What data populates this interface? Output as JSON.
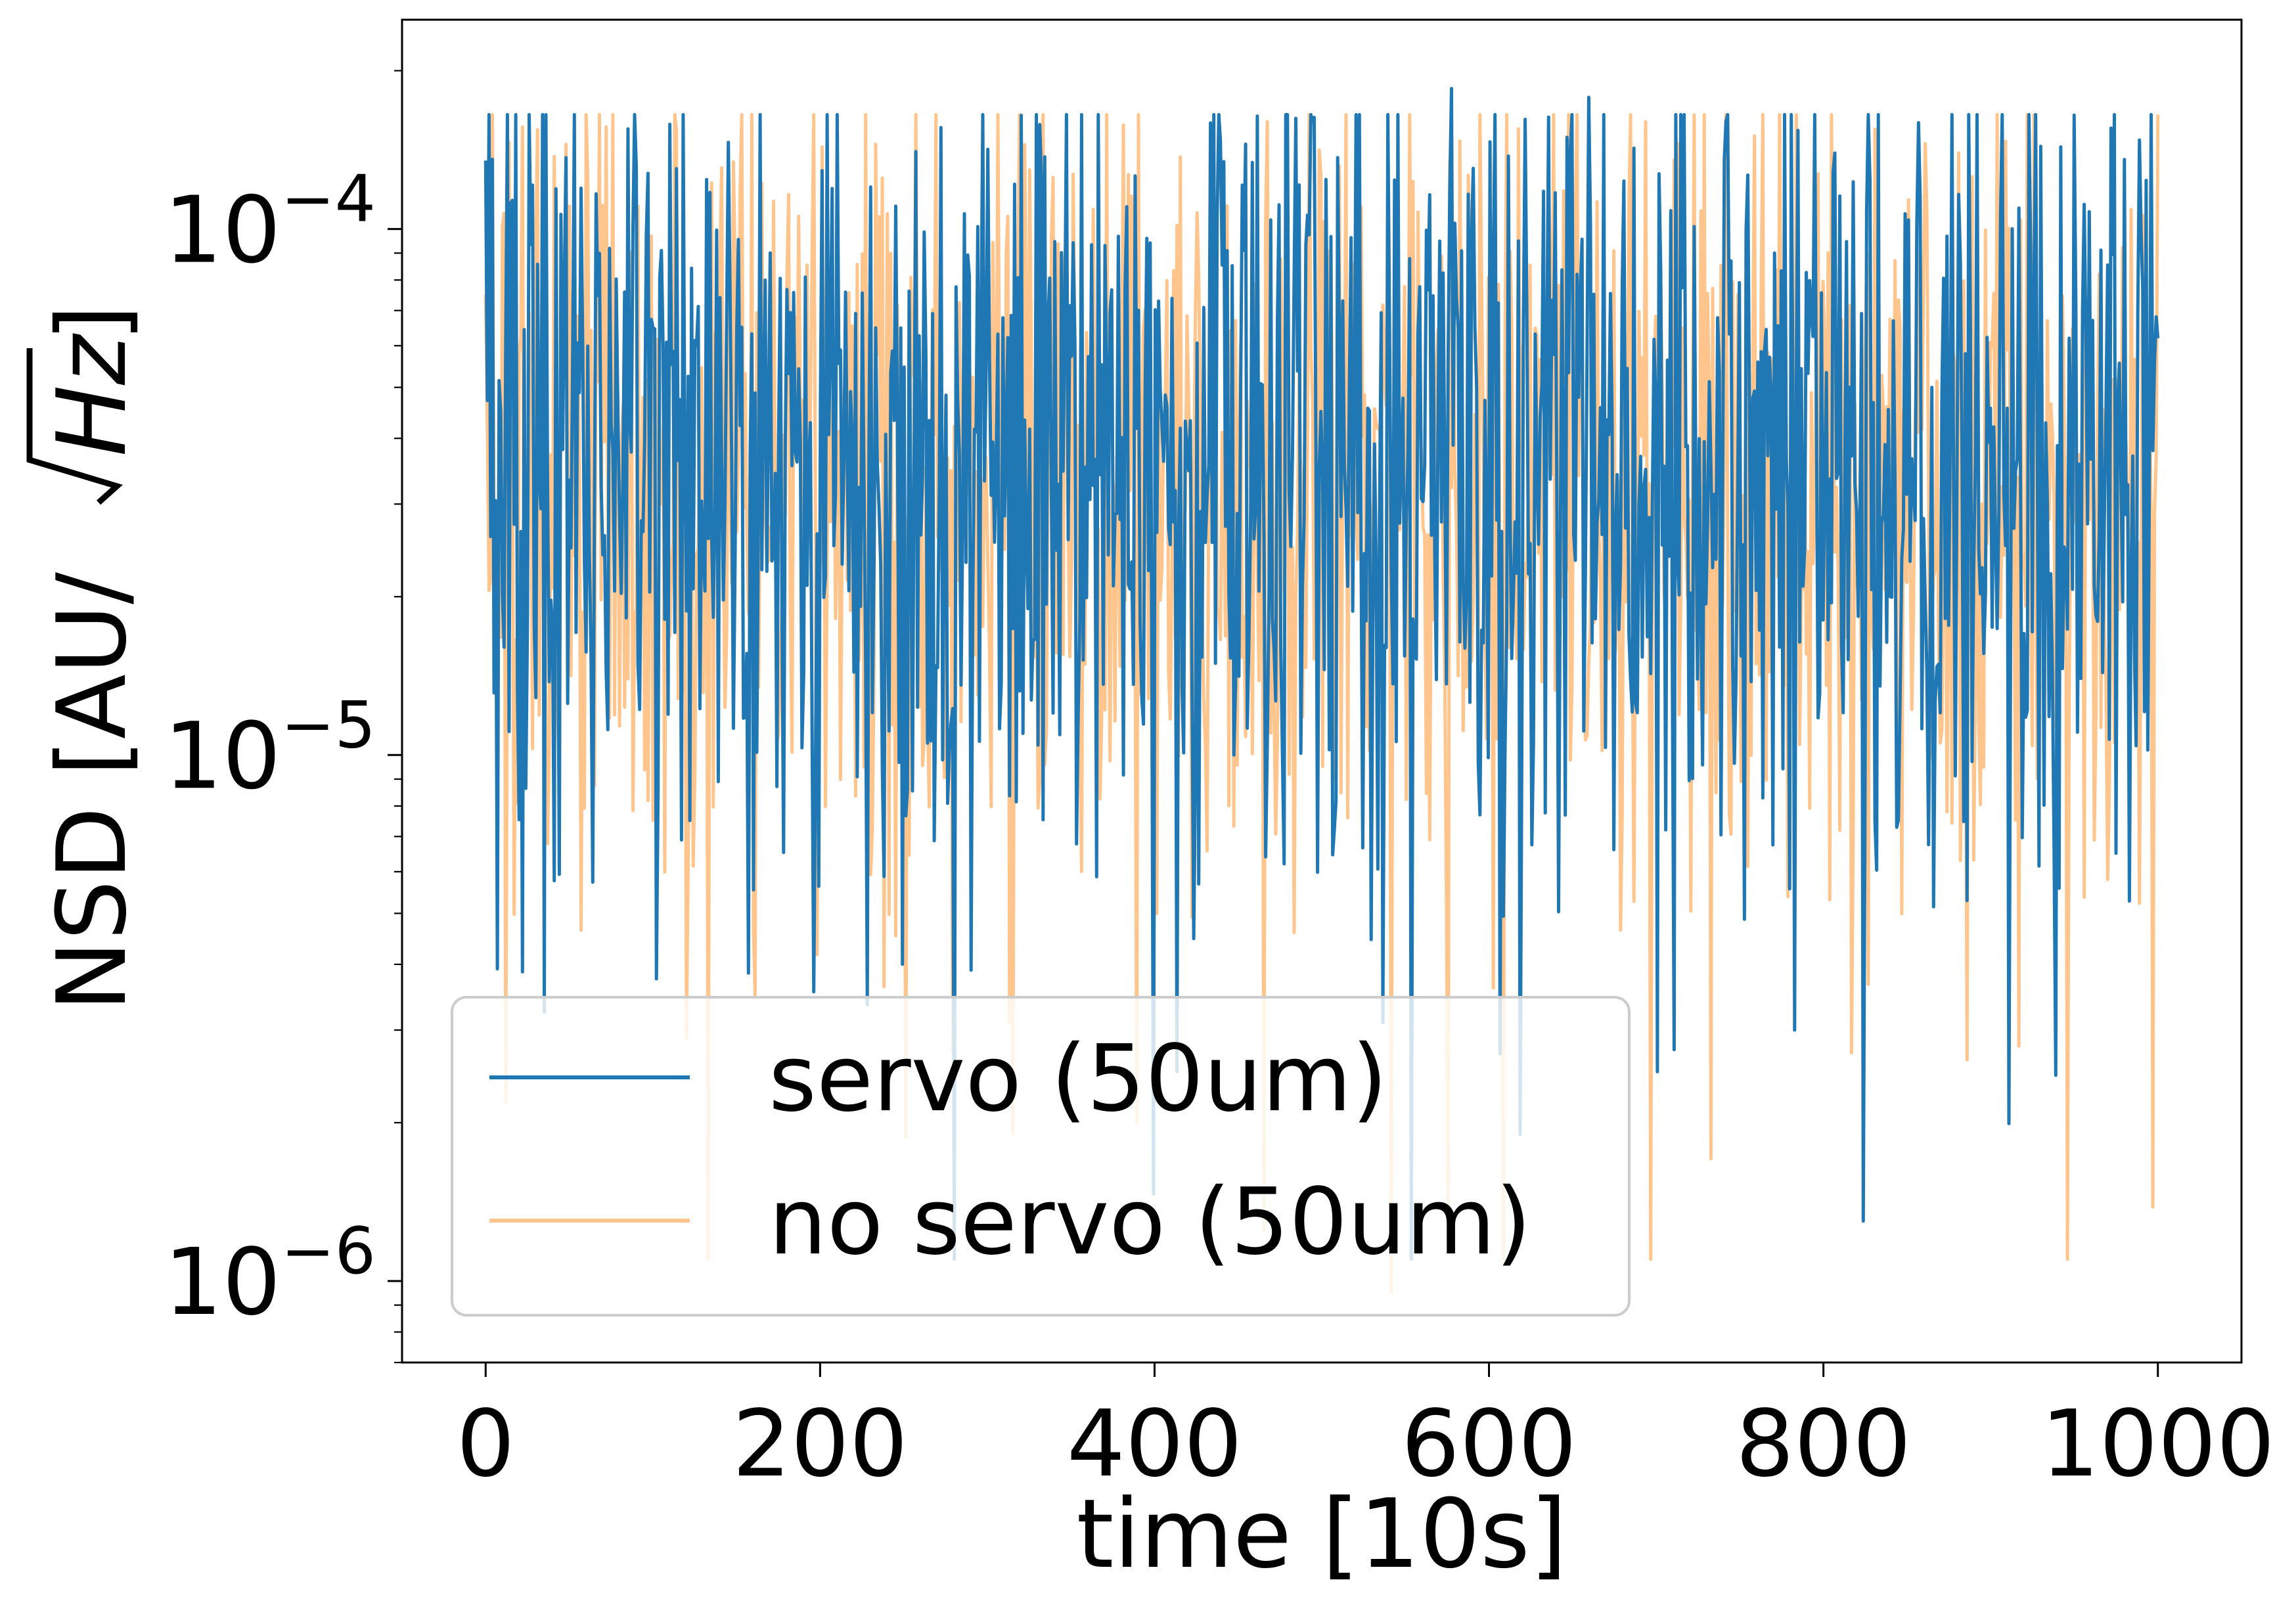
{
  "chart_data": {
    "type": "line",
    "title": "",
    "xlabel": "time [10s]",
    "ylabel_main": "NSD [AU/",
    "ylabel_sqrt": "Hz",
    "ylabel_close": "]",
    "xlim": [
      -50,
      1050
    ],
    "ylim": [
      7e-07,
      0.00025
    ],
    "yscale": "log",
    "grid": false,
    "legend_position": "lower-left",
    "x_ticks": [
      {
        "value": 0,
        "label": "0"
      },
      {
        "value": 200,
        "label": "200"
      },
      {
        "value": 400,
        "label": "400"
      },
      {
        "value": 600,
        "label": "600"
      },
      {
        "value": 800,
        "label": "800"
      },
      {
        "value": 1000,
        "label": "1000"
      }
    ],
    "y_ticks": [
      {
        "value": 0.0001,
        "base": "10",
        "exp": "−4"
      },
      {
        "value": 1e-05,
        "base": "10",
        "exp": "−5"
      },
      {
        "value": 1e-06,
        "base": "10",
        "exp": "−6"
      }
    ],
    "series": [
      {
        "name": "servo (50um)",
        "color": "#1f77b4",
        "opacity": 1.0,
        "x_start": 0,
        "x_end": 1000,
        "n_points": 1000,
        "seed": 12345,
        "values": [
          0.000135,
          0.000155,
          6e-05,
          8e-05,
          2.5e-05,
          4e-06,
          3.9e-06,
          0.000158,
          2.4e-05,
          2.5e-06,
          0.000145,
          0.000163,
          3.1e-06,
          0.000185,
          1.9e-06,
          0.000178,
          2.5e-06,
          0.00016,
          3e-06,
          1.3e-06,
          5e-05,
          0.000105,
          6.2e-05
        ]
      },
      {
        "name": "no servo (50um)",
        "color": "#ffbb78",
        "opacity": 0.85,
        "x_start": 0,
        "x_end": 1000,
        "n_points": 1000,
        "seed": 67890,
        "values": [
          7.5e-05,
          3.5e-06,
          0.000125,
          3.1e-06,
          2e-06,
          1.25e-06,
          9.5e-07,
          0.000155,
          0.00016,
          8e-06,
          6.5e-05,
          0.000165
        ]
      }
    ]
  }
}
